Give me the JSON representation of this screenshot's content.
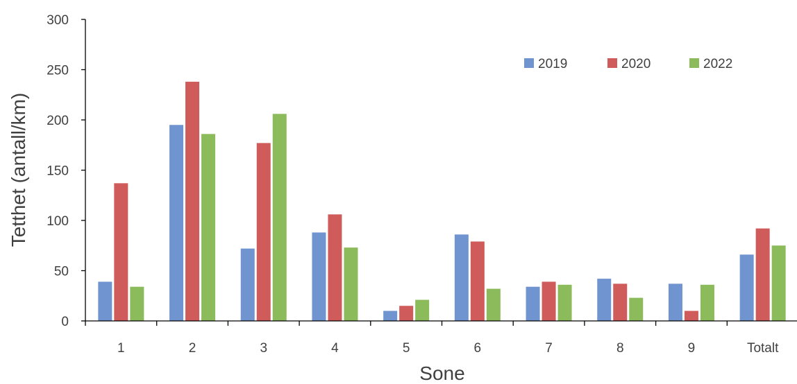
{
  "chart_data": {
    "type": "bar",
    "xlabel": "Sone",
    "ylabel": "Tetthet (antall/km)",
    "categories": [
      "1",
      "2",
      "3",
      "4",
      "5",
      "6",
      "7",
      "8",
      "9",
      "Totalt"
    ],
    "series": [
      {
        "name": "2019",
        "color": "#7094d0",
        "values": [
          39,
          195,
          72,
          88,
          10,
          86,
          34,
          42,
          37,
          66
        ]
      },
      {
        "name": "2020",
        "color": "#d05b5b",
        "values": [
          137,
          238,
          177,
          106,
          15,
          79,
          39,
          37,
          10,
          92
        ]
      },
      {
        "name": "2022",
        "color": "#8bbb5a",
        "values": [
          34,
          186,
          206,
          73,
          21,
          32,
          36,
          23,
          36,
          75
        ]
      }
    ],
    "ylim": [
      0,
      300
    ],
    "yticks": [
      "0",
      "50",
      "100",
      "150",
      "200",
      "250",
      "300"
    ],
    "grid": false,
    "legend_position": "top-right"
  }
}
